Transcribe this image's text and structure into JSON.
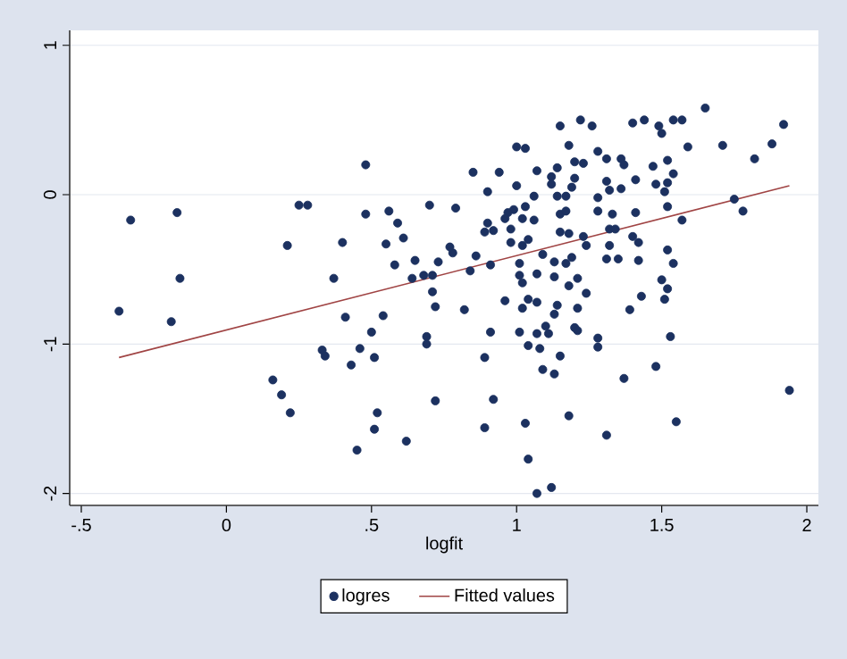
{
  "chart_data": {
    "type": "scatter",
    "xlabel": "logfit",
    "xlim": [
      -0.54,
      2.04
    ],
    "ylim": [
      -2.08,
      1.1
    ],
    "xticks": [
      {
        "value": -0.5,
        "label": "-.5"
      },
      0,
      {
        "value": 0.5,
        "label": ".5"
      },
      1,
      1.5,
      2
    ],
    "yticks": [
      -2,
      -1,
      0,
      1
    ],
    "grid": "y",
    "legend": "bottom",
    "series": [
      {
        "name": "logres",
        "color": "#1c3160",
        "x": [
          -0.33,
          -0.17,
          0.25,
          0.28,
          0.48,
          0.48,
          0.56,
          0.59,
          0.7,
          0.21,
          0.4,
          0.55,
          0.61,
          0.58,
          0.65,
          -0.16,
          -0.37,
          -0.19,
          0.37,
          0.64,
          0.68,
          0.71,
          0.71,
          0.72,
          0.41,
          0.54,
          0.5,
          0.69,
          0.69,
          0.33,
          0.34,
          0.46,
          0.51,
          0.43,
          0.16,
          0.19,
          0.22,
          0.52,
          0.51,
          0.45,
          0.62,
          0.72,
          1.94,
          0.92,
          0.89,
          1.03,
          1.04,
          1.07,
          1.12,
          1.18,
          1.31,
          1.55,
          1.37,
          1.48,
          1.53,
          0.89,
          1.09,
          1.13,
          1.15,
          1.04,
          1.08,
          1.01,
          0.91,
          1.07,
          1.11,
          1.1,
          1.2,
          1.21,
          1.28,
          1.28,
          1.13,
          1.14,
          1.21,
          1.07,
          1.04,
          1.02,
          0.96,
          0.82,
          0.84,
          0.91,
          1.01,
          1.01,
          1.02,
          1.07,
          1.13,
          1.18,
          1.21,
          1.24,
          1.13,
          1.17,
          1.19,
          1.31,
          1.35,
          1.42,
          1.5,
          1.52,
          1.51,
          1.54,
          1.43,
          1.39,
          0.86,
          0.78,
          1.65,
          1.92,
          1.88,
          1.82,
          1.71,
          1.59,
          1.54,
          1.57,
          1.44,
          1.4,
          1.49,
          1.5,
          1.22,
          1.26,
          1.15,
          1.0,
          1.03,
          1.18,
          1.28,
          1.31,
          1.36,
          1.37,
          1.2,
          1.23,
          1.14,
          1.07,
          0.94,
          0.85,
          1.47,
          1.52,
          1.54,
          1.48,
          1.52,
          1.51,
          1.41,
          1.36,
          1.31,
          1.32,
          1.28,
          1.2,
          1.19,
          1.17,
          1.12,
          1.12,
          1.14,
          1.06,
          1.0,
          0.9,
          0.79,
          1.03,
          0.99,
          0.97,
          0.96,
          1.02,
          1.06,
          1.15,
          1.17,
          1.28,
          1.33,
          1.41,
          1.52,
          1.57,
          1.75,
          1.78,
          0.9,
          0.89,
          0.92,
          0.98,
          1.04,
          1.15,
          1.18,
          1.23,
          1.32,
          1.34,
          1.4,
          1.42,
          0.77,
          0.98,
          1.02,
          1.09,
          1.24,
          1.32,
          1.52,
          0.73
        ],
        "values": [
          -0.17,
          -0.12,
          -0.07,
          -0.07,
          0.2,
          -0.13,
          -0.11,
          -0.19,
          -0.07,
          -0.34,
          -0.32,
          -0.33,
          -0.29,
          -0.47,
          -0.44,
          -0.56,
          -0.78,
          -0.85,
          -0.56,
          -0.56,
          -0.54,
          -0.54,
          -0.65,
          -0.75,
          -0.82,
          -0.81,
          -0.92,
          -0.95,
          -1.0,
          -1.04,
          -1.08,
          -1.03,
          -1.09,
          -1.14,
          -1.24,
          -1.34,
          -1.46,
          -1.46,
          -1.57,
          -1.71,
          -1.65,
          -1.38,
          -1.31,
          -1.37,
          -1.56,
          -1.53,
          -1.77,
          -2.0,
          -1.96,
          -1.48,
          -1.61,
          -1.52,
          -1.23,
          -1.15,
          -0.95,
          -1.09,
          -1.17,
          -1.2,
          -1.08,
          -1.01,
          -1.03,
          -0.92,
          -0.92,
          -0.93,
          -0.93,
          -0.88,
          -0.89,
          -0.91,
          -0.96,
          -1.02,
          -0.8,
          -0.74,
          -0.76,
          -0.72,
          -0.7,
          -0.76,
          -0.71,
          -0.77,
          -0.51,
          -0.47,
          -0.46,
          -0.54,
          -0.59,
          -0.53,
          -0.55,
          -0.61,
          -0.56,
          -0.66,
          -0.45,
          -0.46,
          -0.42,
          -0.43,
          -0.43,
          -0.44,
          -0.57,
          -0.63,
          -0.7,
          -0.46,
          -0.68,
          -0.77,
          -0.41,
          -0.39,
          0.58,
          0.47,
          0.34,
          0.24,
          0.33,
          0.32,
          0.5,
          0.5,
          0.5,
          0.48,
          0.46,
          0.41,
          0.5,
          0.46,
          0.46,
          0.32,
          0.31,
          0.33,
          0.29,
          0.24,
          0.24,
          0.2,
          0.22,
          0.21,
          0.18,
          0.16,
          0.15,
          0.15,
          0.19,
          0.23,
          0.14,
          0.07,
          0.08,
          0.02,
          0.1,
          0.04,
          0.09,
          0.03,
          -0.02,
          0.11,
          0.05,
          -0.01,
          0.12,
          0.07,
          -0.01,
          -0.01,
          0.06,
          0.02,
          -0.09,
          -0.08,
          -0.1,
          -0.12,
          -0.16,
          -0.16,
          -0.17,
          -0.13,
          -0.11,
          -0.11,
          -0.13,
          -0.12,
          -0.08,
          -0.17,
          -0.03,
          -0.11,
          -0.19,
          -0.25,
          -0.24,
          -0.23,
          -0.3,
          -0.25,
          -0.26,
          -0.28,
          -0.23,
          -0.23,
          -0.28,
          -0.32,
          -0.35,
          -0.32,
          -0.34,
          -0.4,
          -0.34,
          -0.34,
          -0.37,
          -0.45
        ]
      },
      {
        "name": "Fitted values",
        "type": "line",
        "color": "#a04444",
        "x": [
          -0.37,
          1.94
        ],
        "values": [
          -1.09,
          0.06
        ]
      }
    ]
  }
}
